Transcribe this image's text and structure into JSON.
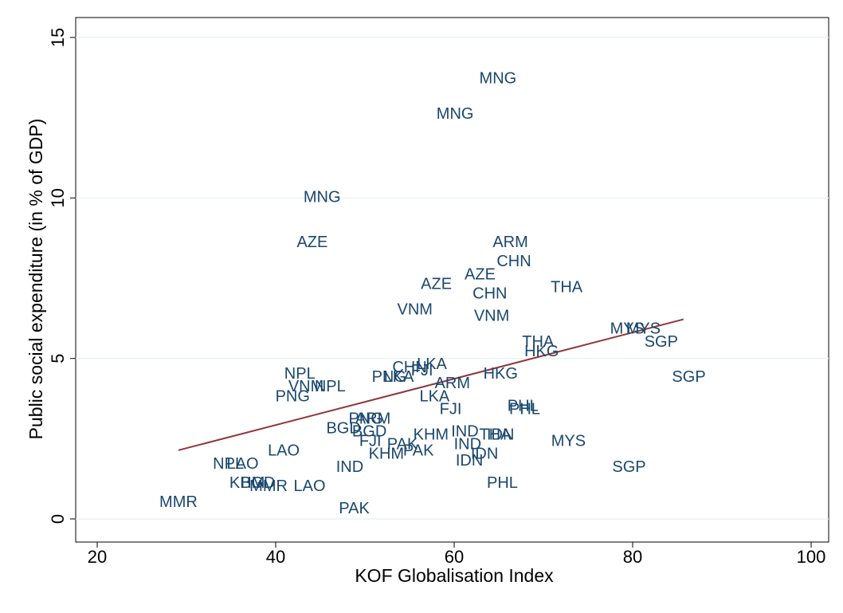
{
  "chart_data": {
    "type": "scatter",
    "x_label": "KOF Globalisation Index",
    "y_label": "Public social expenditure (in % of GDP)",
    "xlim": [
      20,
      100
    ],
    "ylim": [
      0,
      15
    ],
    "xticks": [
      20,
      40,
      60,
      80,
      100
    ],
    "yticks": [
      0,
      5,
      10,
      15
    ],
    "grid": true,
    "series": [
      {
        "color": "#1a476f",
        "labels": [
          "MNG",
          "MNG",
          "MNG",
          "AZE",
          "ARM",
          "CHN",
          "AZE",
          "AZE",
          "THA",
          "CHN",
          "VNM",
          "VNM",
          "MYS",
          "MYS",
          "SGP",
          "THA",
          "HKG",
          "SGP",
          "HKG",
          "LKA",
          "CHN",
          "FJI",
          "PNG",
          "LKA",
          "NPL",
          "VNM",
          "NPL",
          "PNG",
          "ARM",
          "LKA",
          "FJI",
          "PHL",
          "PHL",
          "PNG",
          "ARM",
          "BGD",
          "BGD",
          "FJI",
          "KHM",
          "IND",
          "THA",
          "IDN",
          "PAK",
          "PAK",
          "KHM",
          "IND",
          "MYS",
          "IDN",
          "IDN",
          "LAO",
          "NPL",
          "LAO",
          "IND",
          "SGP",
          "PHL",
          "KHM",
          "BGD",
          "MMR",
          "LAO",
          "MMR",
          "PAK"
        ],
        "x": [
          64.9,
          60.1,
          45.2,
          44.1,
          66.3,
          66.7,
          62.9,
          58.0,
          72.6,
          64.0,
          55.6,
          64.2,
          79.4,
          81.2,
          83.2,
          69.4,
          69.8,
          86.3,
          65.2,
          57.5,
          55.0,
          56.4,
          52.7,
          53.8,
          42.7,
          43.4,
          46.1,
          41.9,
          59.8,
          57.8,
          59.6,
          67.7,
          67.9,
          50.1,
          50.9,
          47.6,
          50.5,
          50.6,
          57.4,
          61.2,
          64.6,
          65.2,
          54.2,
          56.0,
          52.4,
          61.5,
          72.8,
          63.4,
          61.7,
          40.9,
          34.7,
          36.3,
          48.3,
          79.6,
          65.4,
          36.8,
          38.0,
          39.2,
          43.8,
          29.1,
          48.8
        ],
        "values": [
          13.7,
          12.6,
          10.0,
          8.6,
          8.6,
          8.0,
          7.6,
          7.3,
          7.2,
          7.0,
          6.5,
          6.3,
          5.9,
          5.9,
          5.5,
          5.5,
          5.2,
          4.4,
          4.5,
          4.8,
          4.7,
          4.6,
          4.4,
          4.4,
          4.5,
          4.1,
          4.1,
          3.8,
          4.2,
          3.8,
          3.4,
          3.5,
          3.4,
          3.1,
          3.1,
          2.8,
          2.7,
          2.4,
          2.6,
          2.7,
          2.6,
          2.6,
          2.3,
          2.1,
          2.0,
          2.3,
          2.4,
          2.0,
          1.8,
          2.1,
          1.7,
          1.7,
          1.6,
          1.6,
          1.1,
          1.1,
          1.1,
          1.0,
          1.0,
          0.5,
          0.3
        ]
      }
    ],
    "fit": {
      "color": "#90353b",
      "x": [
        29.1,
        85.7
      ],
      "values": [
        2.14,
        6.22
      ]
    }
  }
}
